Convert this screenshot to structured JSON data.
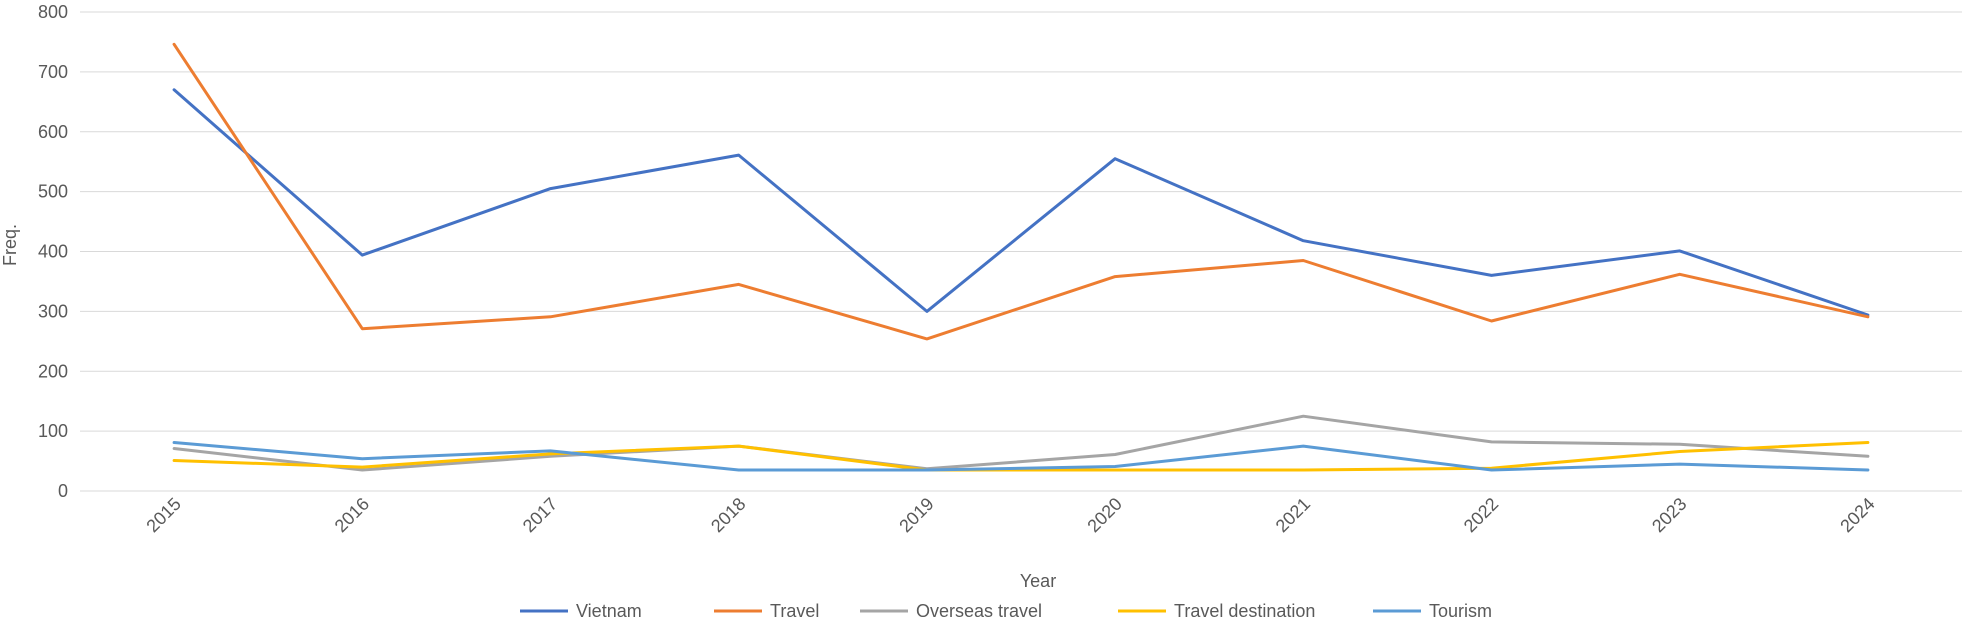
{
  "chart_data": {
    "type": "line",
    "title": "",
    "xlabel": "Year",
    "ylabel": "Freq.",
    "ylim": [
      0,
      800
    ],
    "yticks": [
      0,
      100,
      200,
      300,
      400,
      500,
      600,
      700,
      800
    ],
    "grid": true,
    "legend_position": "bottom",
    "categories": [
      "2015",
      "2016",
      "2017",
      "2018",
      "2019",
      "2020",
      "2021",
      "2022",
      "2023",
      "2024"
    ],
    "series": [
      {
        "name": "Vietnam",
        "color": "#4472c4",
        "values": [
          670,
          394,
          505,
          561,
          300,
          555,
          418,
          360,
          401,
          294
        ]
      },
      {
        "name": "Travel",
        "color": "#ed7d31",
        "values": [
          746,
          271,
          291,
          345,
          254,
          358,
          385,
          284,
          362,
          291
        ]
      },
      {
        "name": "Overseas travel",
        "color": "#a5a5a5",
        "values": [
          71,
          35,
          58,
          75,
          37,
          61,
          125,
          82,
          78,
          58
        ]
      },
      {
        "name": "Travel destination",
        "color": "#ffc000",
        "values": [
          51,
          40,
          62,
          75,
          35,
          35,
          35,
          38,
          66,
          81
        ]
      },
      {
        "name": "Tourism",
        "color": "#5b9bd5",
        "values": [
          81,
          54,
          67,
          35,
          35,
          41,
          75,
          35,
          45,
          35
        ]
      }
    ]
  }
}
